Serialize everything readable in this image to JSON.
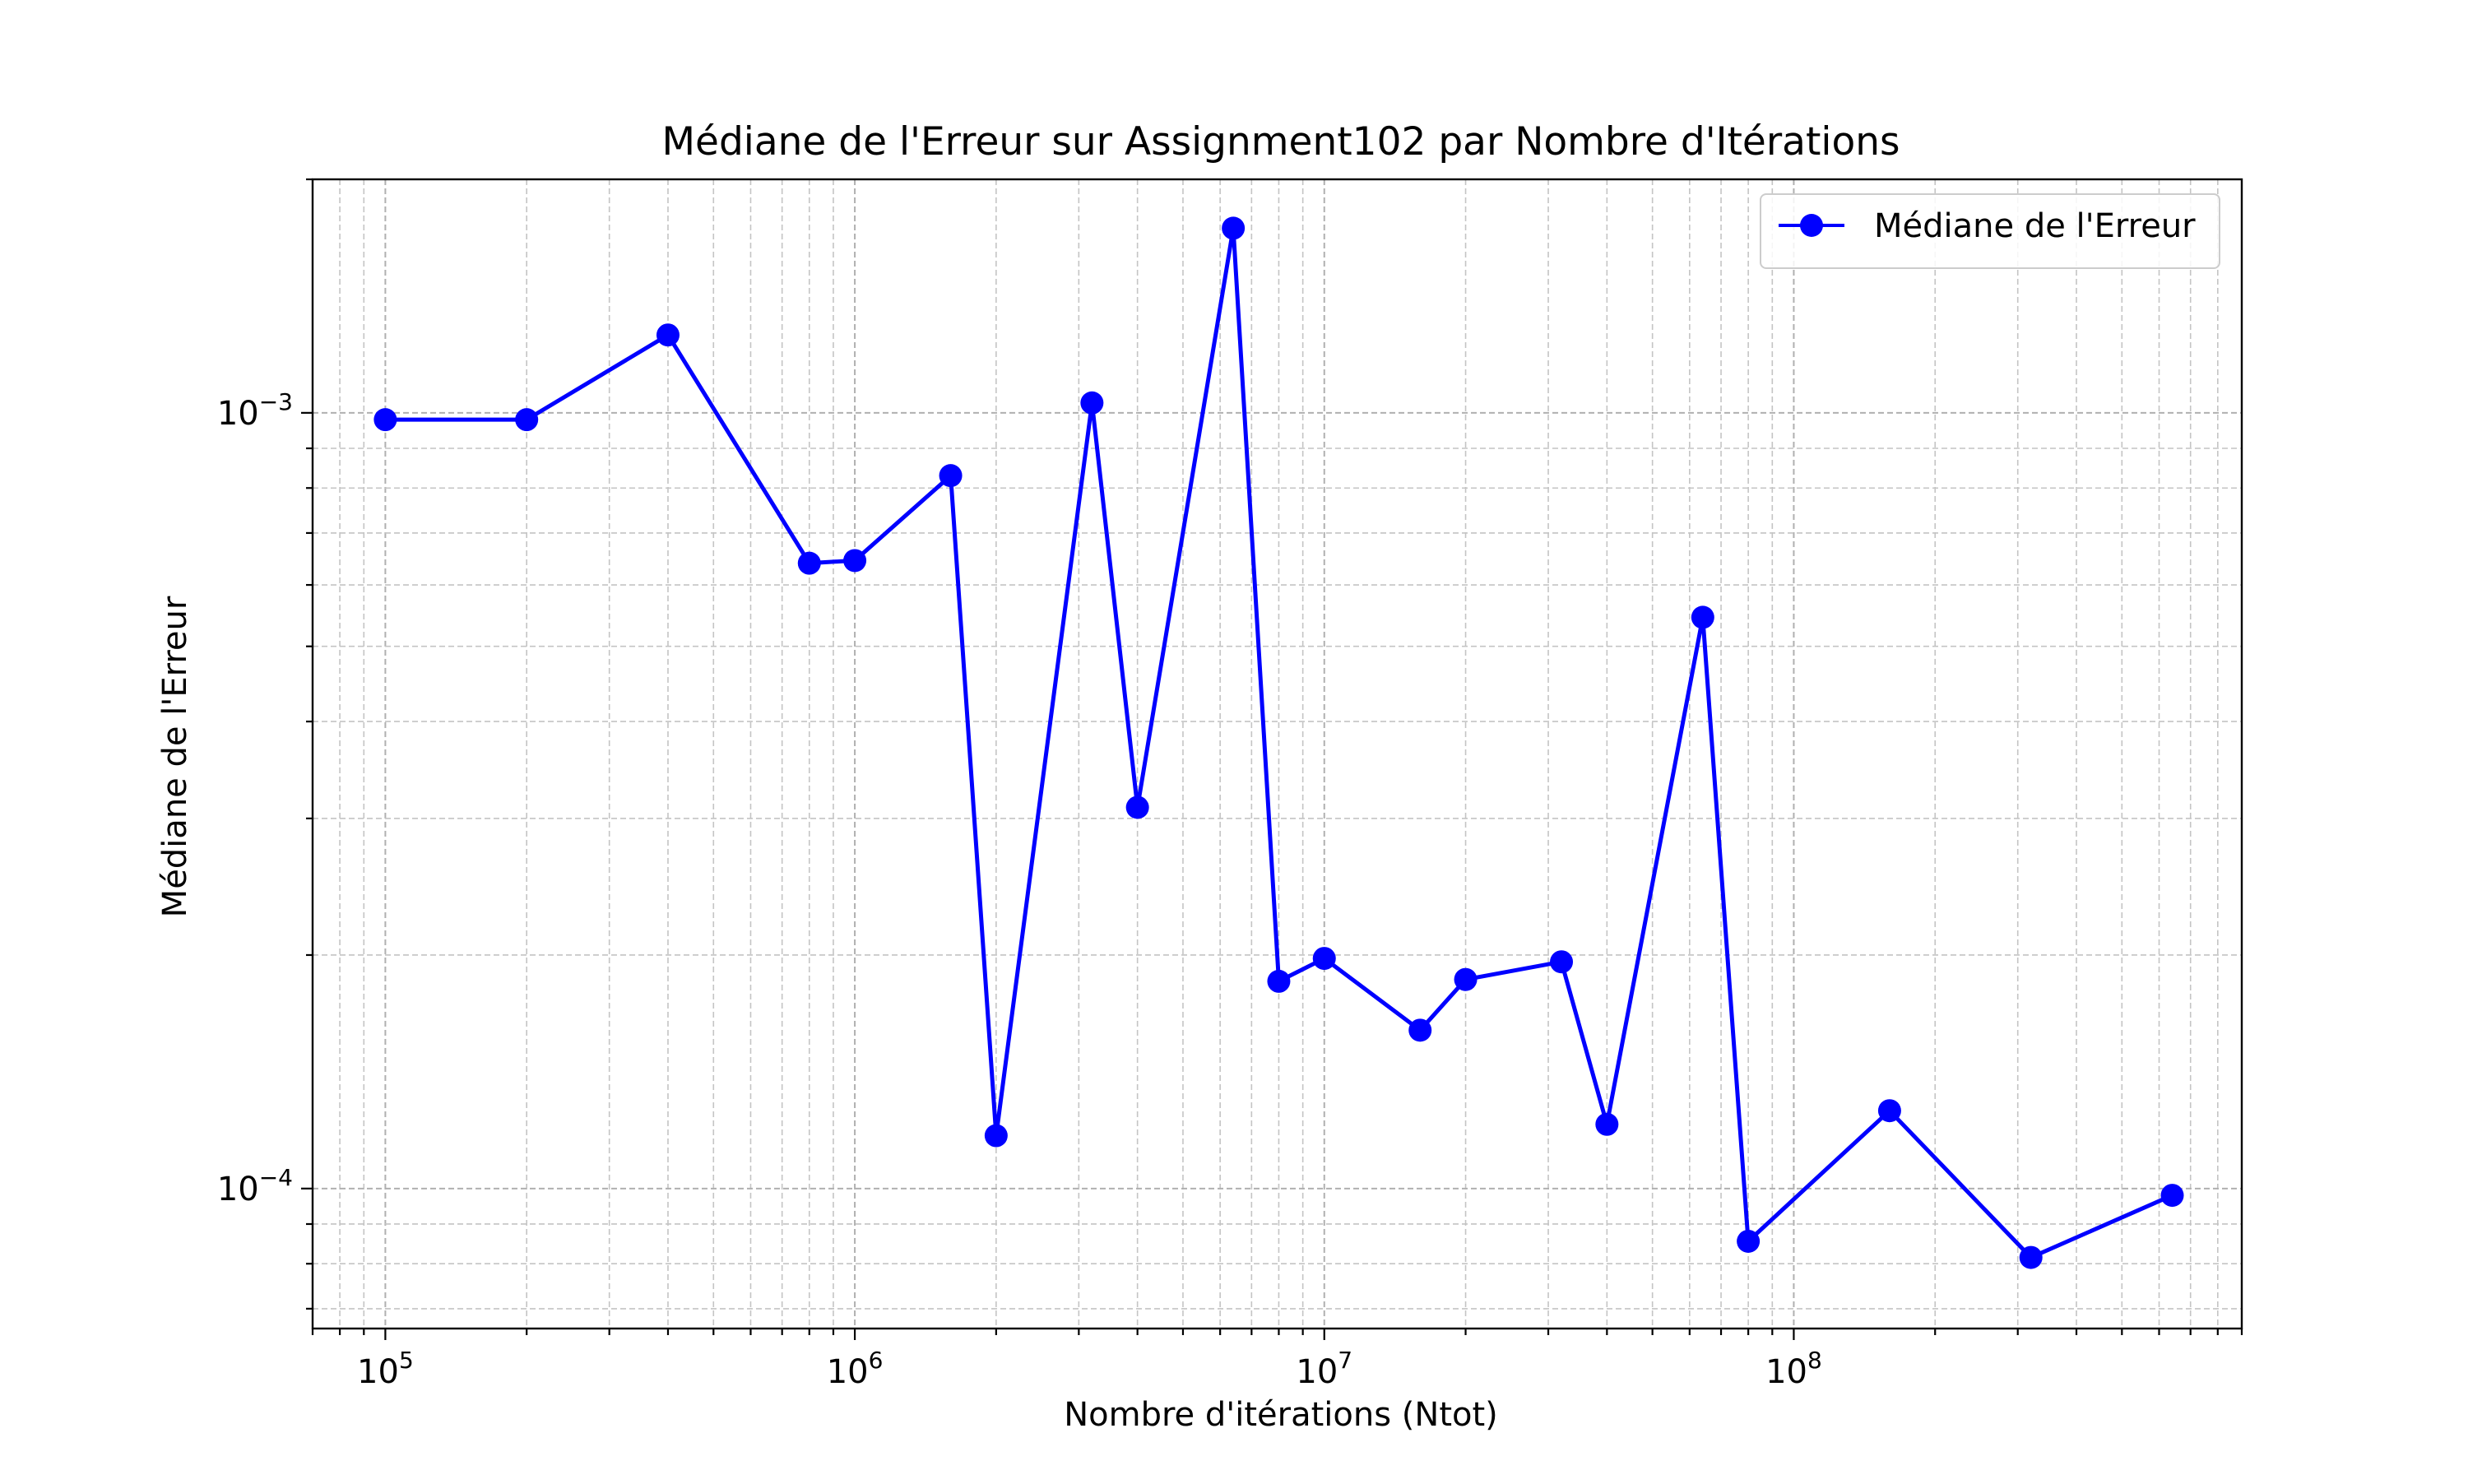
{
  "chart_data": {
    "type": "line",
    "title": "Médiane de l'Erreur sur Assignment102 par Nombre d'Itérations",
    "xlabel": "Nombre d'itérations (Ntot)",
    "ylabel": "Médiane de l'Erreur",
    "xscale": "log",
    "yscale": "log",
    "xlim": [
      70000,
      900000000
    ],
    "ylim": [
      6.6e-05,
      0.002
    ],
    "grid": true,
    "legend_position": "top-right",
    "x_tick_labels": [
      {
        "base": "10",
        "exp": "5",
        "value": 100000
      },
      {
        "base": "10",
        "exp": "6",
        "value": 1000000
      },
      {
        "base": "10",
        "exp": "7",
        "value": 10000000
      },
      {
        "base": "10",
        "exp": "8",
        "value": 100000000
      }
    ],
    "y_tick_labels": [
      {
        "base": "10",
        "exp": "−3",
        "value": 0.001
      },
      {
        "base": "10",
        "exp": "−4",
        "value": 0.0001
      }
    ],
    "series": [
      {
        "name": "Médiane de l'Erreur",
        "color": "#0000ff",
        "marker": "circle",
        "points": [
          {
            "x": 100000,
            "y": 0.00098
          },
          {
            "x": 200000,
            "y": 0.00098
          },
          {
            "x": 400000,
            "y": 0.00126
          },
          {
            "x": 800000,
            "y": 0.00064
          },
          {
            "x": 1000000,
            "y": 0.000645
          },
          {
            "x": 1600000,
            "y": 0.00083
          },
          {
            "x": 2000000,
            "y": 0.000117
          },
          {
            "x": 3200000,
            "y": 0.00103
          },
          {
            "x": 4000000,
            "y": 0.00031
          },
          {
            "x": 6400000,
            "y": 0.00173
          },
          {
            "x": 8000000,
            "y": 0.000185
          },
          {
            "x": 10000000,
            "y": 0.000198
          },
          {
            "x": 16000000,
            "y": 0.00016
          },
          {
            "x": 20000000,
            "y": 0.000186
          },
          {
            "x": 32000000,
            "y": 0.000196
          },
          {
            "x": 40000000,
            "y": 0.000121
          },
          {
            "x": 64000000,
            "y": 0.000545
          },
          {
            "x": 80000000,
            "y": 8.55e-05
          },
          {
            "x": 160000000,
            "y": 0.000126
          },
          {
            "x": 320000000,
            "y": 8.15e-05
          },
          {
            "x": 640000000,
            "y": 9.8e-05
          }
        ]
      }
    ]
  }
}
